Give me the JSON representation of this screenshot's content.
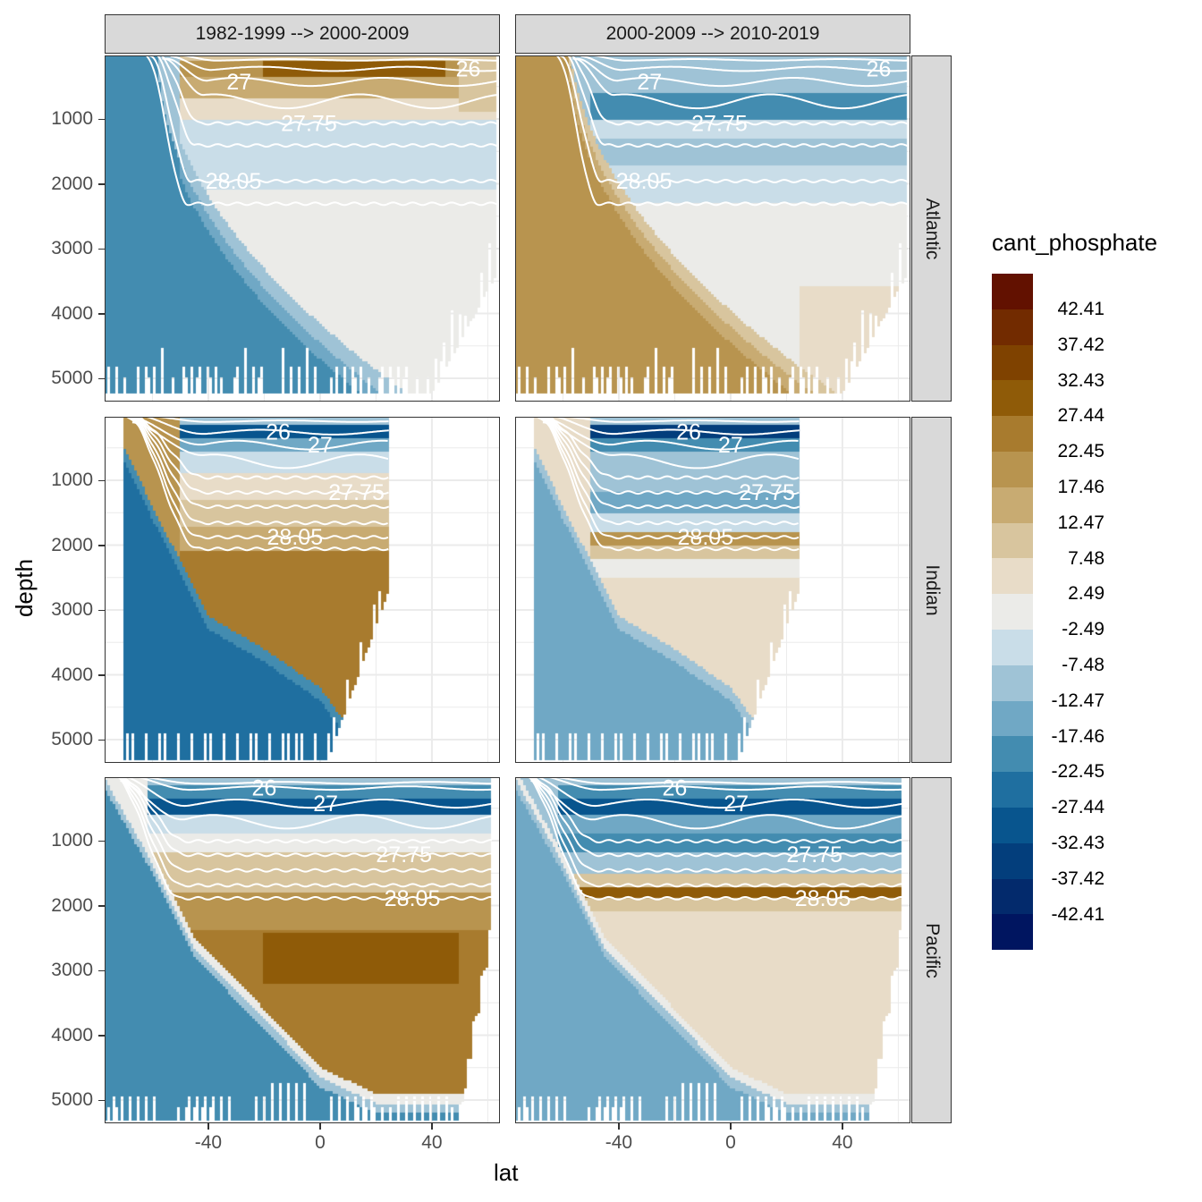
{
  "chart_data": {
    "type": "heatmap",
    "subtype": "filled contour sections with isopycnal contour lines",
    "xlabel": "lat",
    "ylabel": "depth",
    "x_ticks": [
      -40,
      0,
      40
    ],
    "y_ticks": [
      1000,
      2000,
      3000,
      4000,
      5000
    ],
    "y_reversed": true,
    "xlim": [
      -77,
      64
    ],
    "ylim": [
      0,
      5350
    ],
    "grid": true,
    "columns": [
      "1982-1999 --> 2000-2009",
      "2000-2009 --> 2010-2019"
    ],
    "rows": [
      "Atlantic",
      "Indian",
      "Pacific"
    ],
    "contour_labels": [
      "26",
      "27",
      "27.75",
      "28.05"
    ],
    "legend": {
      "title": "cant_phosphate",
      "placement": "right",
      "breaks": [
        42.41,
        37.42,
        32.43,
        27.44,
        22.45,
        17.46,
        12.47,
        7.48,
        2.49,
        -2.49,
        -7.48,
        -12.47,
        -17.46,
        -22.45,
        -27.44,
        -32.43,
        -37.42,
        -42.41
      ],
      "labels": [
        "42.41",
        "37.42",
        "32.43",
        "27.44",
        "22.45",
        "17.46",
        "12.47",
        "7.48",
        "2.49",
        "-2.49",
        "-7.48",
        "-12.47",
        "-17.46",
        "-22.45",
        "-27.44",
        "-32.43",
        "-37.42",
        "-42.41"
      ],
      "colors": [
        "#621100",
        "#722b00",
        "#7f4200",
        "#8f5b08",
        "#a87b2e",
        "#b8944f",
        "#c8ab72",
        "#d8c59e",
        "#e8dcc8",
        "#ebebe8",
        "#c9dde8",
        "#9fc3d6",
        "#70a8c5",
        "#438cb0",
        "#1f6fa0",
        "#08558e",
        "#033e7c",
        "#032a6c",
        "#001560"
      ]
    }
  }
}
